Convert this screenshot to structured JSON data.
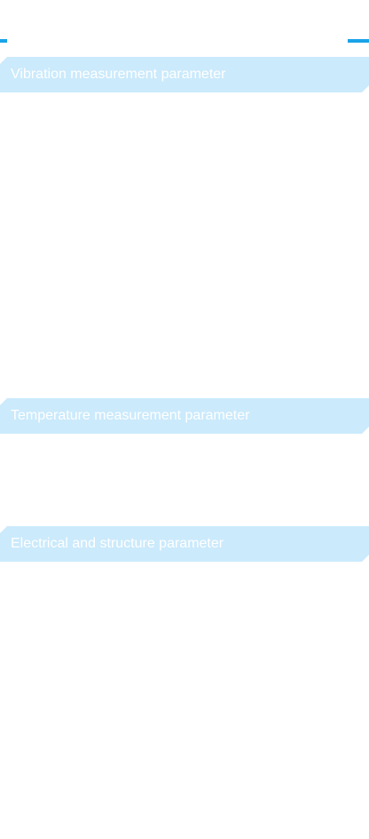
{
  "sections": [
    {
      "title": "Vibration measurement parameter"
    },
    {
      "title": "Temperature measurement parameter"
    },
    {
      "title": "Electrical and structure parameter"
    }
  ],
  "colors": {
    "accent": "#1aa3e8",
    "banner_bg": "#cbeafc",
    "banner_text": "#ffffff",
    "page_bg": "#ffffff"
  }
}
